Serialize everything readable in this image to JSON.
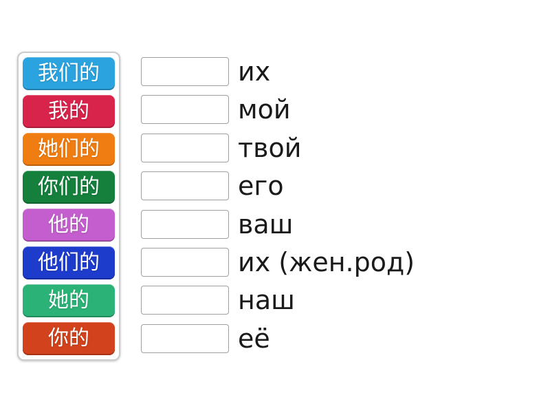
{
  "activity": {
    "type": "match-up",
    "tiles": [
      {
        "label": "我们的",
        "color": "#2ba3df"
      },
      {
        "label": "我的",
        "color": "#d8234a"
      },
      {
        "label": "她们的",
        "color": "#f07d11"
      },
      {
        "label": "你们的",
        "color": "#157f3c"
      },
      {
        "label": "他的",
        "color": "#c45ece"
      },
      {
        "label": "他们的",
        "color": "#1d3ccc"
      },
      {
        "label": "她的",
        "color": "#2bb377"
      },
      {
        "label": "你的",
        "color": "#d2421c"
      }
    ],
    "targets": [
      {
        "label": "их"
      },
      {
        "label": "мой"
      },
      {
        "label": "твой"
      },
      {
        "label": "его"
      },
      {
        "label": "ваш"
      },
      {
        "label": "их (жен.род)"
      },
      {
        "label": "наш"
      },
      {
        "label": "её"
      }
    ]
  },
  "colors": {
    "canvas_background": "#ffffff",
    "tile_text": "#ffffff",
    "target_text": "#1a1a1a",
    "drop_zone_border": "#9e9e9e",
    "panel_border": "#cccccc"
  }
}
